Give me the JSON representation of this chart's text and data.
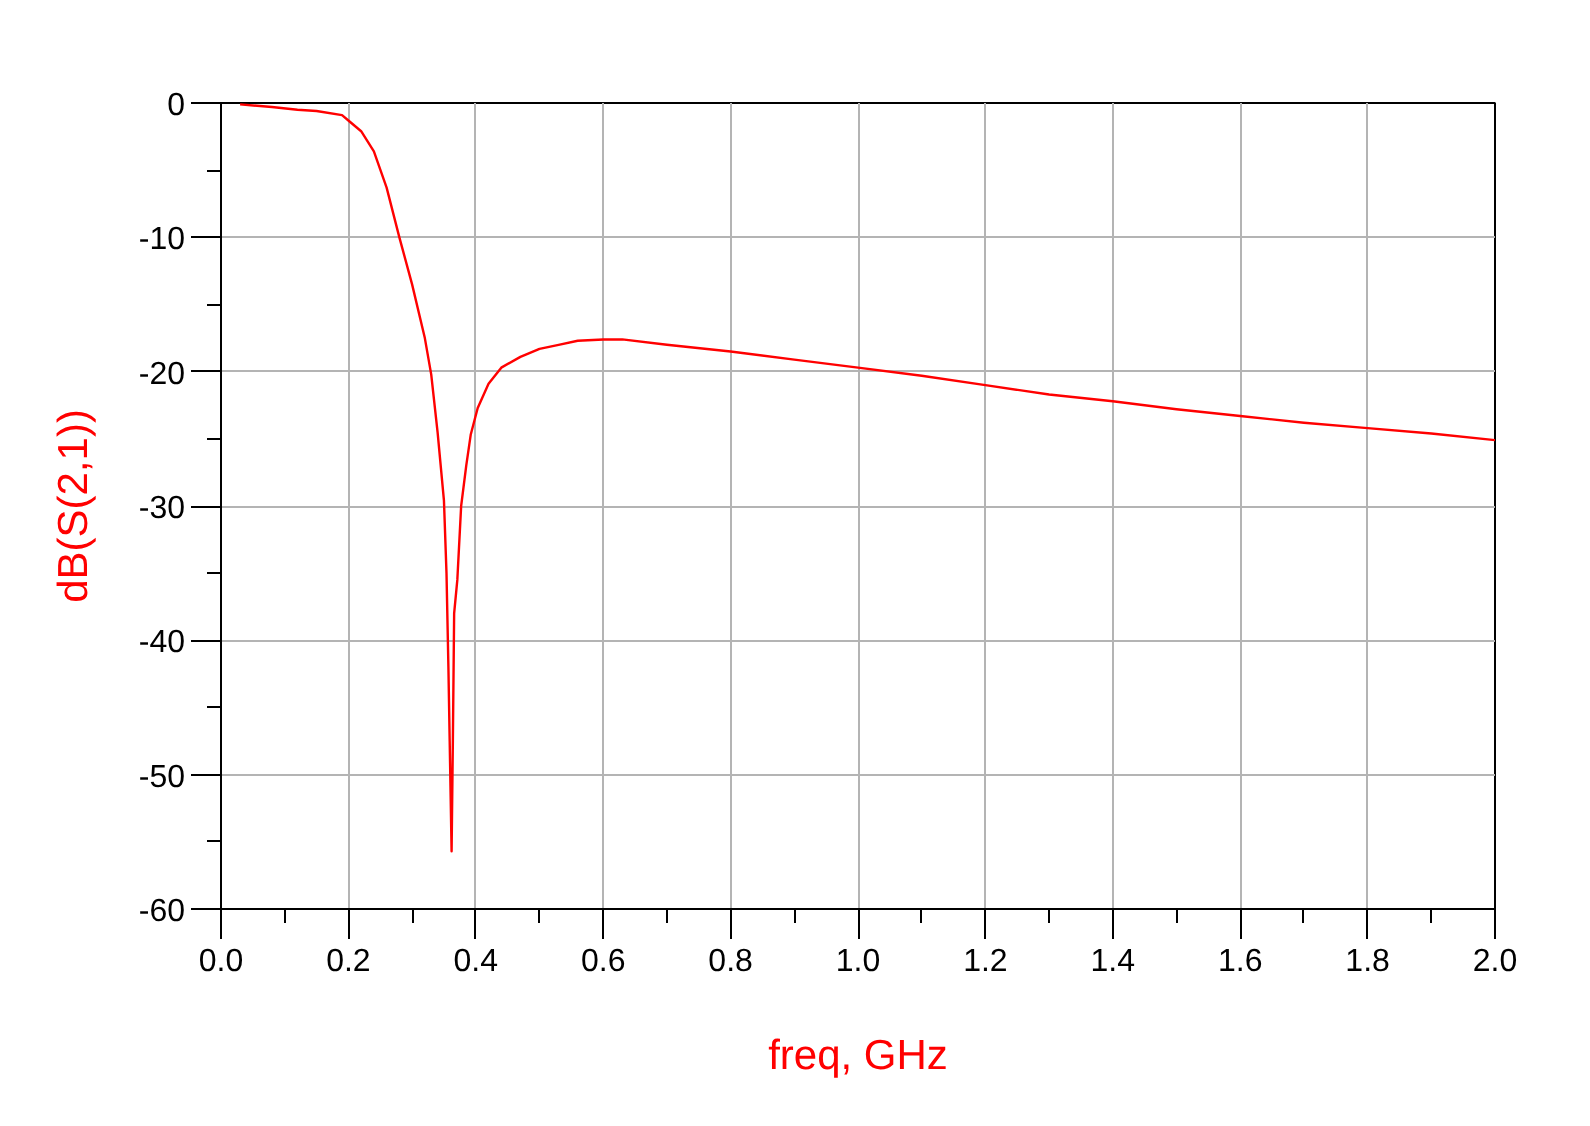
{
  "chart_data": {
    "type": "line",
    "xlabel": "freq, GHz",
    "ylabel": "dB(S(2,1))",
    "x": [
      0.03,
      0.08,
      0.12,
      0.15,
      0.19,
      0.2,
      0.22,
      0.24,
      0.26,
      0.28,
      0.3,
      0.32,
      0.33,
      0.34,
      0.35,
      0.354,
      0.357,
      0.359,
      0.362,
      0.364,
      0.366,
      0.371,
      0.377,
      0.385,
      0.392,
      0.403,
      0.42,
      0.44,
      0.47,
      0.5,
      0.53,
      0.56,
      0.6,
      0.63,
      0.7,
      0.8,
      0.9,
      1.0,
      1.1,
      1.2,
      1.3,
      1.4,
      1.5,
      1.6,
      1.7,
      1.8,
      1.9,
      2.0
    ],
    "series": [
      {
        "color": "#ff0000",
        "values": [
          -0.1,
          -0.3,
          -0.5,
          -0.6,
          -0.9,
          -1.3,
          -2.1,
          -3.6,
          -6.3,
          -10.0,
          -13.5,
          -17.5,
          -20.2,
          -24.5,
          -29.6,
          -35.0,
          -42.0,
          -47.5,
          -55.7,
          -47.5,
          -38.0,
          -35.5,
          -30.0,
          -27.0,
          -24.7,
          -22.7,
          -20.9,
          -19.7,
          -18.9,
          -18.3,
          -18.0,
          -17.7,
          -17.6,
          -17.6,
          -18.0,
          -18.5,
          -19.1,
          -19.7,
          -20.3,
          -21.0,
          -21.7,
          -22.2,
          -22.8,
          -23.3,
          -23.8,
          -24.2,
          -24.6,
          -25.1
        ]
      }
    ],
    "xlim": [
      0,
      2
    ],
    "xticks": [
      {
        "value": 0,
        "label": "0.0"
      },
      {
        "value": 0.1,
        "label": null
      },
      {
        "value": 0.2,
        "label": "0.2"
      },
      {
        "value": 0.3,
        "label": null
      },
      {
        "value": 0.4,
        "label": "0.4"
      },
      {
        "value": 0.5,
        "label": null
      },
      {
        "value": 0.6,
        "label": "0.6"
      },
      {
        "value": 0.7,
        "label": null
      },
      {
        "value": 0.8,
        "label": "0.8"
      },
      {
        "value": 0.9,
        "label": null
      },
      {
        "value": 1.0,
        "label": "1.0"
      },
      {
        "value": 1.1,
        "label": null
      },
      {
        "value": 1.2,
        "label": "1.2"
      },
      {
        "value": 1.3,
        "label": null
      },
      {
        "value": 1.4,
        "label": "1.4"
      },
      {
        "value": 1.5,
        "label": null
      },
      {
        "value": 1.6,
        "label": "1.6"
      },
      {
        "value": 1.7,
        "label": null
      },
      {
        "value": 1.8,
        "label": "1.8"
      },
      {
        "value": 1.9,
        "label": null
      },
      {
        "value": 2.0,
        "label": "2.0"
      }
    ],
    "ylim": [
      -60,
      0
    ],
    "yticks": [
      0,
      {
        "value": -5,
        "label": null
      },
      -10,
      {
        "value": -15,
        "label": null
      },
      -20,
      {
        "value": -25,
        "label": null
      },
      -30,
      {
        "value": -35,
        "label": null
      },
      -40,
      {
        "value": -45,
        "label": null
      },
      -50,
      {
        "value": -55,
        "label": null
      },
      -60
    ],
    "grid": true,
    "line_style": "solid"
  }
}
